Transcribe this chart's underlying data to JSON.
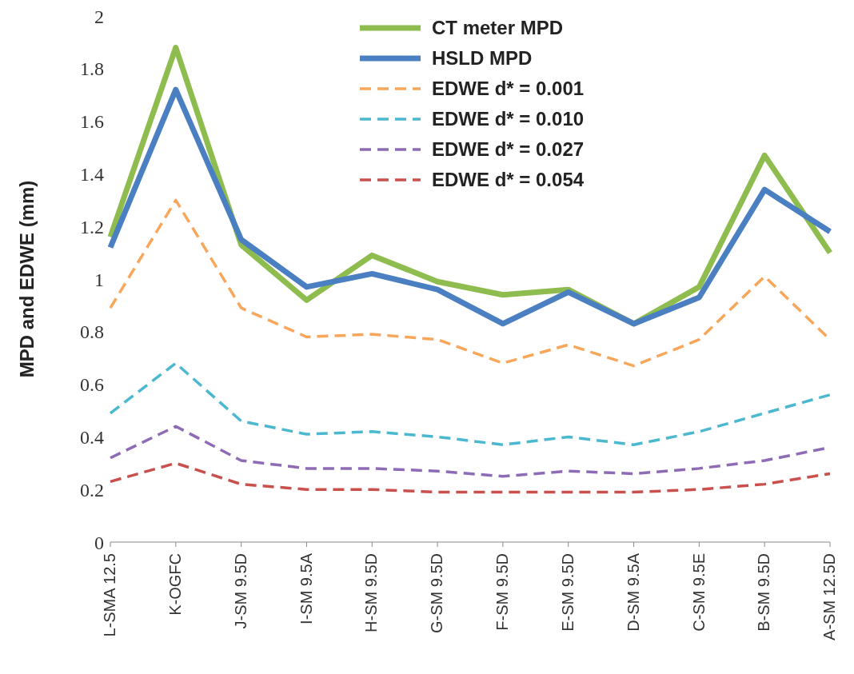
{
  "chart_data": {
    "type": "line",
    "ylabel": "MPD and EDWE (mm)",
    "categories": [
      "L-SMA 12.5",
      "K-OGFC",
      "J-SM 9.5D",
      "I-SM 9.5A",
      "H-SM 9.5D",
      "G-SM 9.5D",
      "F-SM 9.5D",
      "E-SM 9.5D",
      "D-SM 9.5A",
      "C-SM 9.5E",
      "B-SM 9.5D",
      "A-SM 12.5D"
    ],
    "series": [
      {
        "name": "CT meter MPD",
        "color": "#8fbc4f",
        "line_style": "solid",
        "values": [
          1.16,
          1.88,
          1.13,
          0.92,
          1.09,
          0.99,
          0.94,
          0.96,
          0.83,
          0.97,
          1.47,
          1.1
        ]
      },
      {
        "name": "HSLD MPD",
        "color": "#4a7fc1",
        "line_style": "solid",
        "values": [
          1.12,
          1.72,
          1.15,
          0.97,
          1.02,
          0.96,
          0.83,
          0.95,
          0.83,
          0.93,
          1.34,
          1.18
        ]
      },
      {
        "name": "EDWE d* = 0.001",
        "color": "#f8a65a",
        "line_style": "dashed",
        "values": [
          0.89,
          1.3,
          0.89,
          0.78,
          0.79,
          0.77,
          0.68,
          0.75,
          0.67,
          0.77,
          1.01,
          0.77
        ]
      },
      {
        "name": "EDWE d* = 0.010",
        "color": "#4bb8d0",
        "line_style": "dashed",
        "values": [
          0.49,
          0.68,
          0.46,
          0.41,
          0.42,
          0.4,
          0.37,
          0.4,
          0.37,
          0.42,
          0.49,
          0.56
        ]
      },
      {
        "name": "EDWE d* = 0.027",
        "color": "#8e6bb5",
        "line_style": "dashed",
        "values": [
          0.32,
          0.44,
          0.31,
          0.28,
          0.28,
          0.27,
          0.25,
          0.27,
          0.26,
          0.28,
          0.31,
          0.36
        ]
      },
      {
        "name": "EDWE d* = 0.054",
        "color": "#c9504c",
        "line_style": "dashed",
        "values": [
          0.23,
          0.3,
          0.22,
          0.2,
          0.2,
          0.19,
          0.19,
          0.19,
          0.19,
          0.2,
          0.22,
          0.26
        ]
      }
    ],
    "ylim": [
      0,
      2
    ],
    "yticks": [
      0,
      0.2,
      0.4,
      0.6,
      0.8,
      1,
      1.2,
      1.4,
      1.6,
      1.8,
      2
    ],
    "grid": false,
    "legend": "top right",
    "marker": "none"
  }
}
